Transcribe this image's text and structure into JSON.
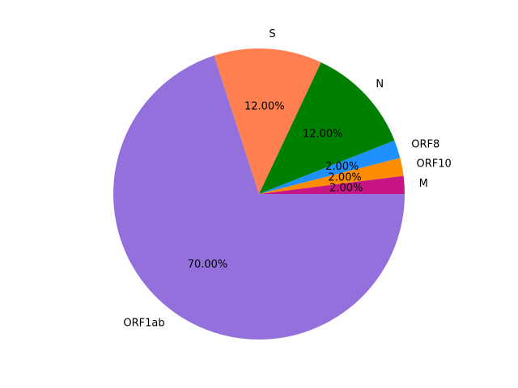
{
  "chart_data": {
    "type": "pie",
    "title": "",
    "categories": [
      "M",
      "ORF10",
      "ORF8",
      "N",
      "S",
      "ORF1ab"
    ],
    "values": [
      2.0,
      2.0,
      2.0,
      12.0,
      12.0,
      70.0
    ],
    "percent_labels": [
      "2.00%",
      "2.00%",
      "2.00%",
      "12.00%",
      "12.00%",
      "70.00%"
    ],
    "colors": [
      "#c71585",
      "#ff8c00",
      "#1e90ff",
      "#008000",
      "#ff7f50",
      "#9370db"
    ],
    "start_angle_deg": 0,
    "direction": "counterclockwise",
    "legend": "none"
  }
}
